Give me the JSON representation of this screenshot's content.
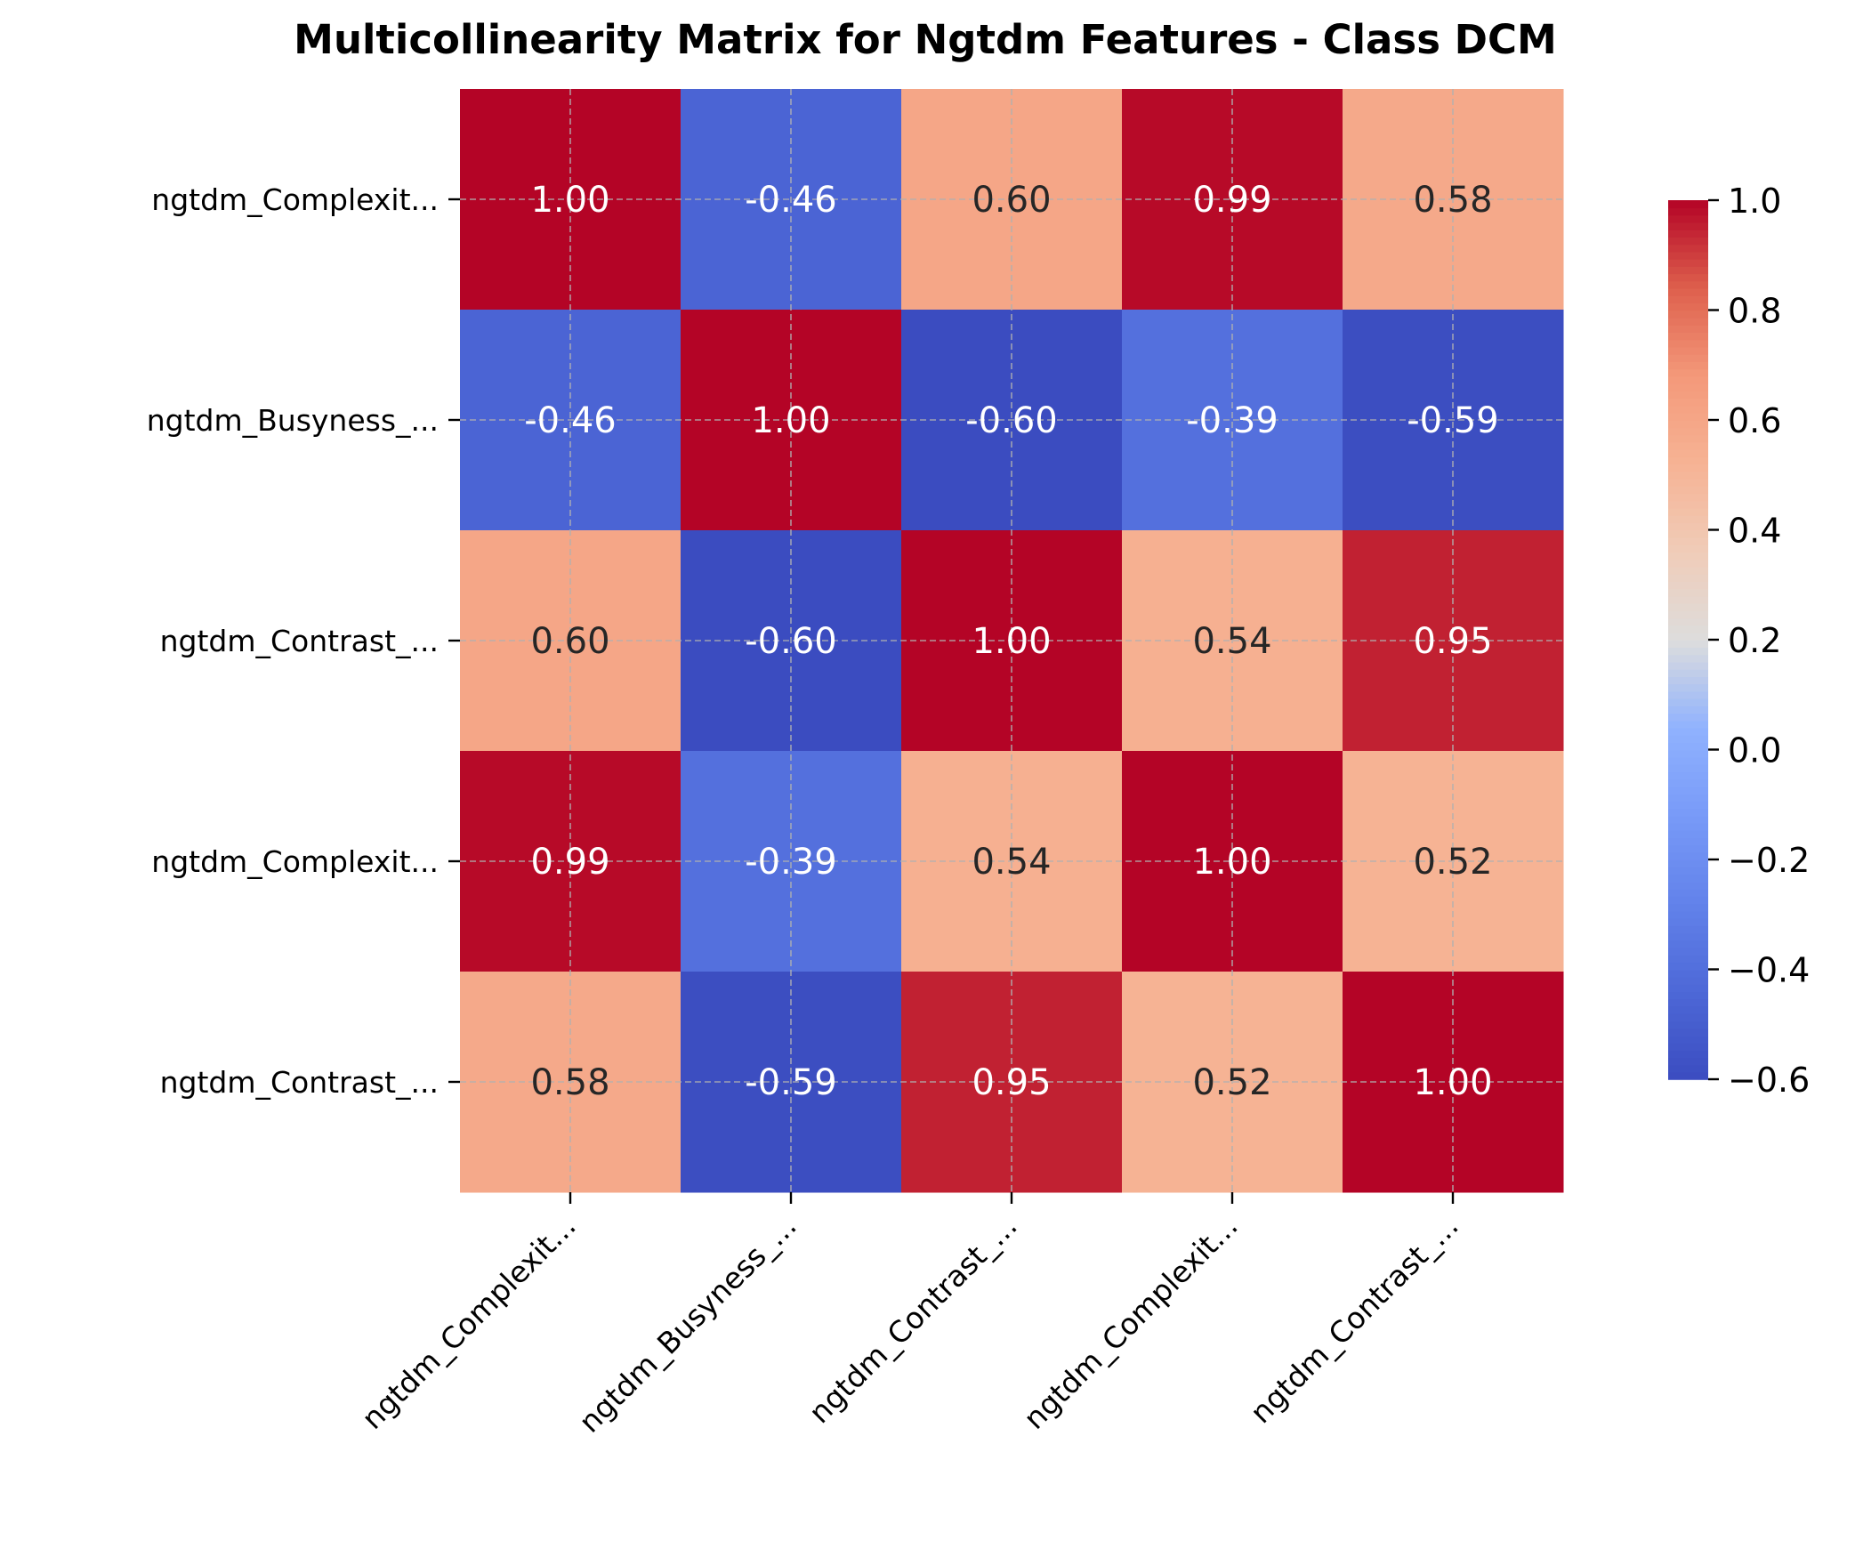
{
  "chart_data": {
    "type": "heatmap",
    "title": "Multicollinearity Matrix for Ngtdm Features - Class DCM",
    "row_labels": [
      "ngtdm_Complexit...",
      "ngtdm_Busyness_...",
      "ngtdm_Contrast_...",
      "ngtdm_Complexit...",
      "ngtdm_Contrast_..."
    ],
    "col_labels": [
      "ngtdm_Complexit...",
      "ngtdm_Busyness_...",
      "ngtdm_Contrast_...",
      "ngtdm_Complexit...",
      "ngtdm_Contrast_..."
    ],
    "values": [
      [
        1.0,
        -0.46,
        0.6,
        0.99,
        0.58
      ],
      [
        -0.46,
        1.0,
        -0.6,
        -0.39,
        -0.59
      ],
      [
        0.6,
        -0.6,
        1.0,
        0.54,
        0.95
      ],
      [
        0.99,
        -0.39,
        0.54,
        1.0,
        0.52
      ],
      [
        0.58,
        -0.59,
        0.95,
        0.52,
        1.0
      ]
    ],
    "annotation_format": "0.00",
    "colormap": "coolwarm",
    "vmin": -0.6,
    "vmax": 1.0,
    "colorbar": {
      "ticks": [
        1.0,
        0.8,
        0.6,
        0.4,
        0.2,
        0.0,
        -0.2,
        -0.4,
        -0.6
      ],
      "tick_labels": [
        "1.0",
        "0.8",
        "0.6",
        "0.4",
        "0.2",
        "0.0",
        "−0.2",
        "−0.4",
        "−0.6"
      ]
    },
    "grid": true
  }
}
